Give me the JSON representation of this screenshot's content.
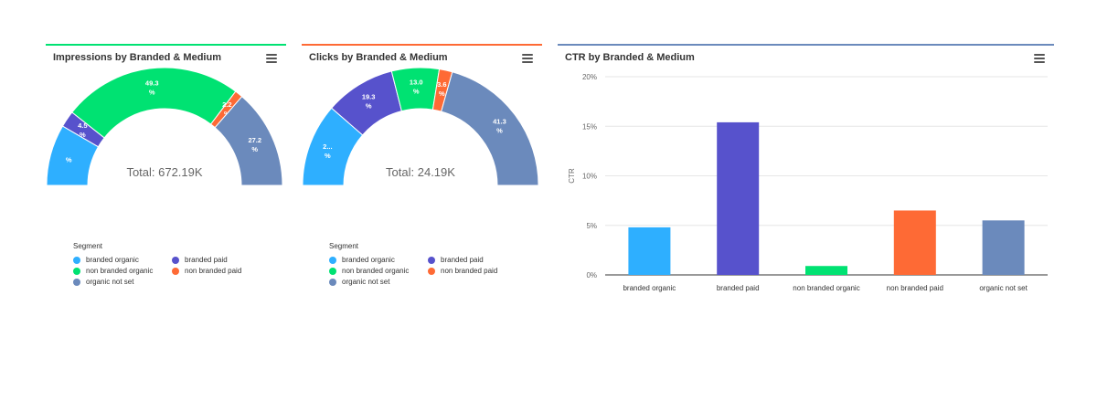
{
  "chart_data": [
    {
      "type": "pie",
      "variant": "semi-donut",
      "title": "Impressions by Branded & Medium",
      "total_label": "Total: 672.19K",
      "legend_title": "Segment",
      "categories": [
        "branded organic",
        "branded paid",
        "non branded organic",
        "non branded paid",
        "organic not set"
      ],
      "values": [
        16.8,
        4.5,
        49.3,
        2.2,
        27.2
      ],
      "labels": [
        "%",
        "4.5 %",
        "49.3 %",
        "2.2 %",
        "27.2 %"
      ],
      "colors": [
        "#2eafff",
        "#5752cc",
        "#00e272",
        "#fe6a35",
        "#6b8abc"
      ],
      "accent": "#00e272"
    },
    {
      "type": "pie",
      "variant": "semi-donut",
      "title": "Clicks by Branded & Medium",
      "total_label": "Total: 24.19K",
      "legend_title": "Segment",
      "categories": [
        "branded organic",
        "branded paid",
        "non branded organic",
        "non branded paid",
        "organic not set"
      ],
      "values": [
        22.8,
        19.3,
        13.0,
        3.6,
        41.3
      ],
      "labels": [
        "2...%",
        "19.3 %",
        "13.0 %",
        "3.6 %",
        "41.3 %"
      ],
      "colors": [
        "#2eafff",
        "#5752cc",
        "#00e272",
        "#fe6a35",
        "#6b8abc"
      ],
      "accent": "#fe6a35"
    },
    {
      "type": "bar",
      "title": "CTR by Branded & Medium",
      "categories": [
        "branded organic",
        "branded paid",
        "non branded organic",
        "non branded paid",
        "organic not set"
      ],
      "values": [
        4.8,
        15.4,
        0.9,
        6.5,
        5.5
      ],
      "colors": [
        "#2eafff",
        "#5752cc",
        "#00e272",
        "#fe6a35",
        "#6b8abc"
      ],
      "ylabel": "CTR",
      "ylim": [
        0,
        20
      ],
      "yticks": [
        0,
        5,
        10,
        15,
        20
      ],
      "ytick_labels": [
        "0%",
        "5%",
        "10%",
        "15%",
        "20%"
      ],
      "accent": "#6b8abc"
    }
  ]
}
